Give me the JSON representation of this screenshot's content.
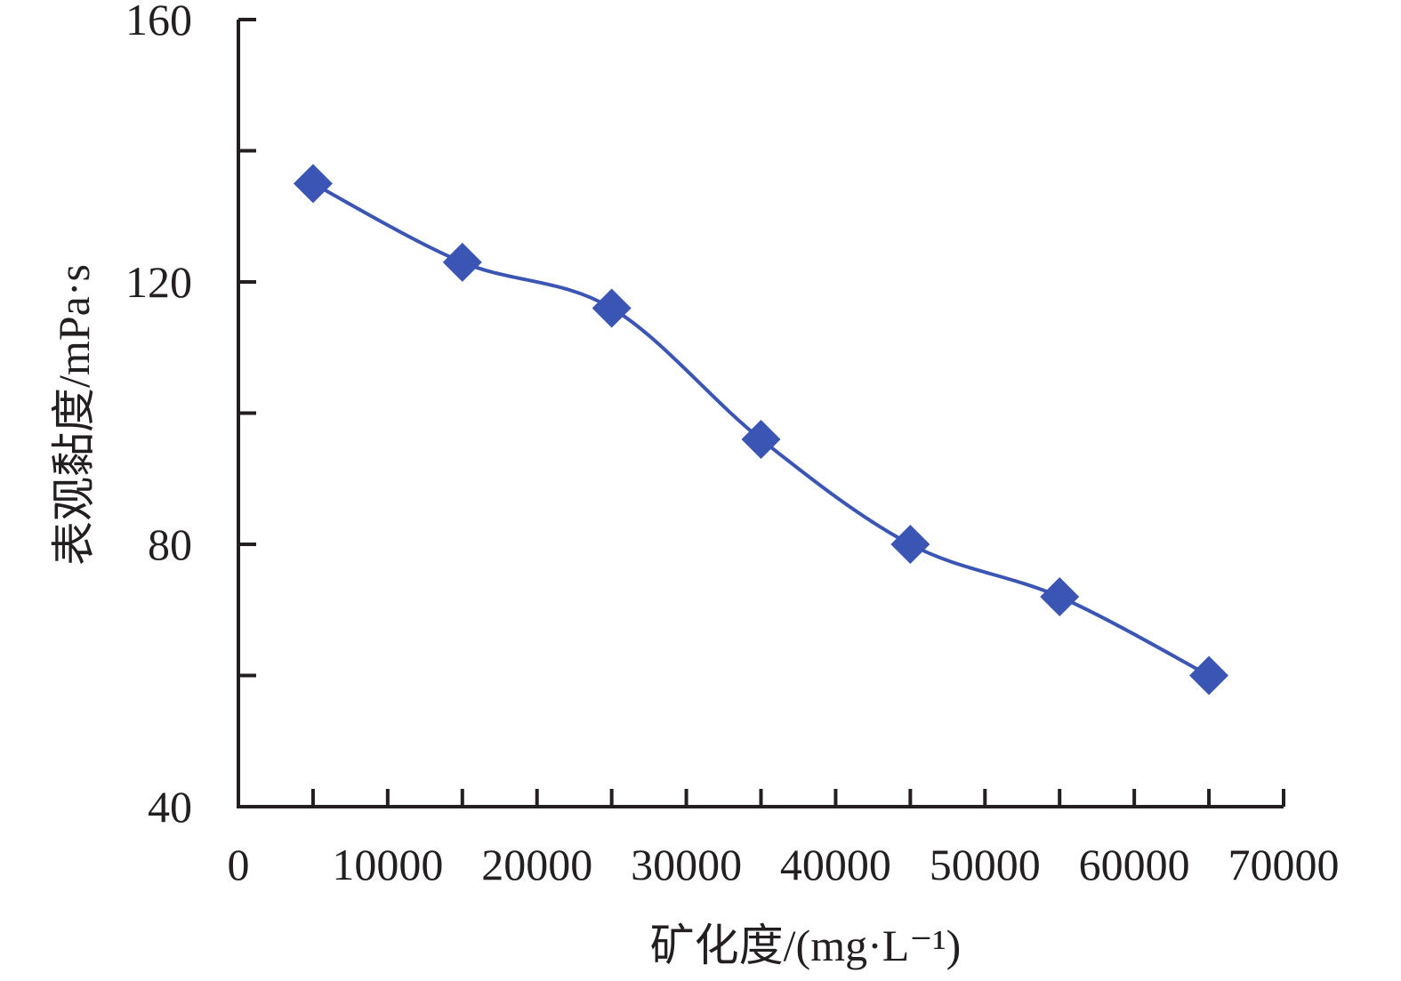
{
  "chart_data": {
    "type": "line",
    "title": "",
    "xlabel": "矿化度/(mg·L⁻¹)",
    "ylabel": "表观黏度/mPa·s",
    "xlim": [
      0,
      70000
    ],
    "ylim": [
      40,
      160
    ],
    "x_ticks": [
      0,
      10000,
      20000,
      30000,
      40000,
      50000,
      60000,
      70000
    ],
    "x_tick_labels": [
      "0",
      "10000",
      "20000",
      "30000",
      "40000",
      "50000",
      "60000",
      "70000"
    ],
    "y_ticks": [
      40,
      60,
      80,
      100,
      120,
      140,
      160
    ],
    "y_tick_labels": [
      "40",
      "",
      "80",
      "",
      "120",
      "",
      "160"
    ],
    "x_minor_ticks": [
      5000,
      15000,
      25000,
      35000,
      45000,
      55000,
      65000
    ],
    "grid": false,
    "legend": "none",
    "series": [
      {
        "x": [
          5000,
          15000,
          25000,
          35000,
          45000,
          55000,
          65000
        ],
        "values": [
          135,
          123,
          116,
          96,
          80,
          72,
          60
        ],
        "color": "#3a55b4",
        "marker": "diamond",
        "smooth": true
      }
    ]
  }
}
